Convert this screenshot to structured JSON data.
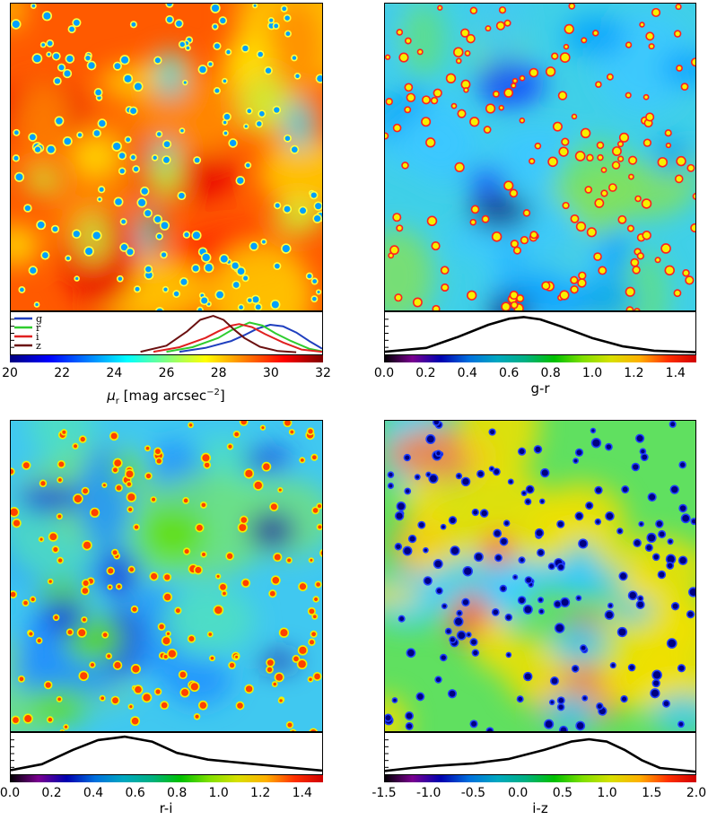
{
  "chart_data": [
    {
      "type": "heatmap",
      "id": "mu_r",
      "xlabel_main": "μ",
      "xlabel_sub": "r",
      "xlabel_rest": " [mag arcsec",
      "xlabel_sup": "−2",
      "xlabel_end": "]",
      "colorbar_range": [
        20,
        32
      ],
      "ticks": [
        "20",
        "22",
        "24",
        "26",
        "28",
        "30",
        "32"
      ],
      "colormap": "jet",
      "histogram": {
        "type": "line",
        "x_range": [
          20,
          32
        ],
        "legend": [
          "g",
          "r",
          "i",
          "z"
        ],
        "legend_placement": "top-left",
        "series": [
          {
            "name": "g",
            "color": "#1f3fbf",
            "peak_x": 30.0,
            "x": [
              26.5,
              27.5,
              28.5,
              29.0,
              29.5,
              30.0,
              30.5,
              31.0,
              31.5,
              32.0
            ],
            "y": [
              0.02,
              0.12,
              0.3,
              0.45,
              0.62,
              0.72,
              0.68,
              0.52,
              0.3,
              0.1
            ]
          },
          {
            "name": "r",
            "color": "#2ecc2e",
            "peak_x": 29.2,
            "x": [
              26.0,
              27.0,
              28.0,
              28.5,
              29.0,
              29.2,
              29.7,
              30.2,
              30.8,
              31.5,
              32.0
            ],
            "y": [
              0.02,
              0.14,
              0.38,
              0.58,
              0.72,
              0.78,
              0.7,
              0.5,
              0.3,
              0.1,
              0.03
            ]
          },
          {
            "name": "i",
            "color": "#e02020",
            "peak_x": 28.8,
            "x": [
              25.5,
              26.5,
              27.5,
              28.0,
              28.5,
              28.8,
              29.3,
              29.8,
              30.5,
              31.2,
              32.0
            ],
            "y": [
              0.02,
              0.14,
              0.38,
              0.55,
              0.7,
              0.74,
              0.66,
              0.48,
              0.26,
              0.08,
              0.02
            ]
          },
          {
            "name": "z",
            "color": "#6b1010",
            "peak_x": 27.8,
            "x": [
              25.0,
              26.0,
              26.8,
              27.3,
              27.8,
              28.2,
              28.6,
              29.0,
              29.6,
              30.3,
              31.0
            ],
            "y": [
              0.02,
              0.18,
              0.55,
              0.85,
              0.95,
              0.85,
              0.6,
              0.38,
              0.15,
              0.04,
              0.01
            ]
          }
        ]
      }
    },
    {
      "type": "heatmap",
      "id": "g-r",
      "xlabel": "g-r",
      "colorbar_range": [
        0.0,
        1.5
      ],
      "ticks": [
        "0.0",
        "0.2",
        "0.4",
        "0.6",
        "0.8",
        "1.0",
        "1.2",
        "1.4"
      ],
      "tick_values": [
        0.0,
        0.2,
        0.4,
        0.6,
        0.8,
        1.0,
        1.2,
        1.4
      ],
      "colormap": "nipy_spectral",
      "histogram": {
        "type": "line",
        "x_range": [
          0.0,
          1.5
        ],
        "series": [
          {
            "color": "#000000",
            "x": [
              0.0,
              0.2,
              0.35,
              0.5,
              0.6,
              0.67,
              0.75,
              0.85,
              1.0,
              1.15,
              1.3,
              1.5
            ],
            "y": [
              0.02,
              0.12,
              0.4,
              0.72,
              0.88,
              0.92,
              0.86,
              0.68,
              0.38,
              0.16,
              0.05,
              0.01
            ]
          }
        ]
      }
    },
    {
      "type": "heatmap",
      "id": "r-i",
      "xlabel": "r-i",
      "colorbar_range": [
        0.0,
        1.5
      ],
      "ticks": [
        "0.0",
        "0.2",
        "0.4",
        "0.6",
        "0.8",
        "1.0",
        "1.2",
        "1.4"
      ],
      "tick_values": [
        0.0,
        0.2,
        0.4,
        0.6,
        0.8,
        1.0,
        1.2,
        1.4
      ],
      "colormap": "nipy_spectral",
      "histogram": {
        "type": "line",
        "x_range": [
          0.0,
          1.5
        ],
        "series": [
          {
            "color": "#000000",
            "x": [
              0.0,
              0.15,
              0.3,
              0.42,
              0.55,
              0.68,
              0.8,
              0.95,
              1.1,
              1.25,
              1.4,
              1.5
            ],
            "y": [
              0.06,
              0.22,
              0.6,
              0.86,
              0.95,
              0.82,
              0.52,
              0.34,
              0.26,
              0.18,
              0.1,
              0.05
            ]
          }
        ]
      }
    },
    {
      "type": "heatmap",
      "id": "i-z",
      "xlabel": "i-z",
      "colorbar_range": [
        -1.5,
        2.0
      ],
      "ticks": [
        "-1.5",
        "-1.0",
        "-0.5",
        "0.0",
        "0.5",
        "1.0",
        "1.5",
        "2.0"
      ],
      "tick_values": [
        -1.5,
        -1.0,
        -0.5,
        0.0,
        0.5,
        1.0,
        1.5,
        2.0
      ],
      "colormap": "nipy_spectral",
      "histogram": {
        "type": "line",
        "x_range": [
          -1.5,
          2.0
        ],
        "series": [
          {
            "color": "#000000",
            "x": [
              -1.5,
              -1.2,
              -0.9,
              -0.5,
              -0.1,
              0.3,
              0.6,
              0.8,
              1.0,
              1.2,
              1.4,
              1.6,
              2.0
            ],
            "y": [
              0.04,
              0.12,
              0.18,
              0.24,
              0.36,
              0.6,
              0.82,
              0.88,
              0.82,
              0.6,
              0.32,
              0.12,
              0.02
            ]
          }
        ]
      }
    }
  ]
}
